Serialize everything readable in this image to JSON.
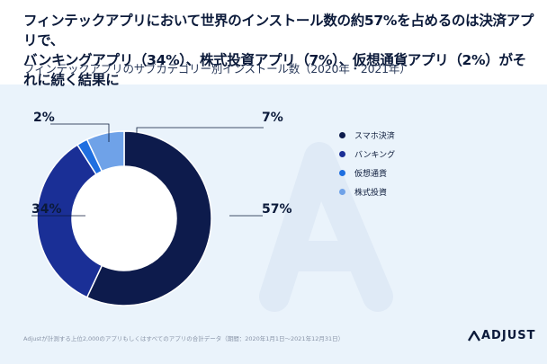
{
  "header": {
    "title_line1": "フィンテックアプリにおいて世界のインストール数の約57%を占めるのは決済アプリで、",
    "title_line2": "バンキングアプリ（34%）、株式投資アプリ（7%）、仮想通貨アプリ（2%）がそれに続く結果に",
    "subtitle": "フィンテックアプリのサブカテゴリー別インストール数（2020年・2021年）"
  },
  "chart_data": {
    "type": "pie",
    "donut": true,
    "title": "フィンテックアプリのサブカテゴリー別インストール数（2020年・2021年）",
    "categories": [
      "スマホ決済",
      "バンキング",
      "仮想通貨",
      "株式投資"
    ],
    "values": [
      57,
      34,
      2,
      7
    ],
    "labels": [
      "57%",
      "34%",
      "2%",
      "7%"
    ],
    "colors": [
      "#0d1b4c",
      "#1a2f96",
      "#1f6fe0",
      "#6fa2e8"
    ],
    "legend_position": "right"
  },
  "footer": {
    "note": "Adjustが計測する上位2,000のアプリもしくはすべてのアプリの合計データ（期間：2020年1月1日〜2021年12月31日）",
    "brand": "ADJUST"
  }
}
